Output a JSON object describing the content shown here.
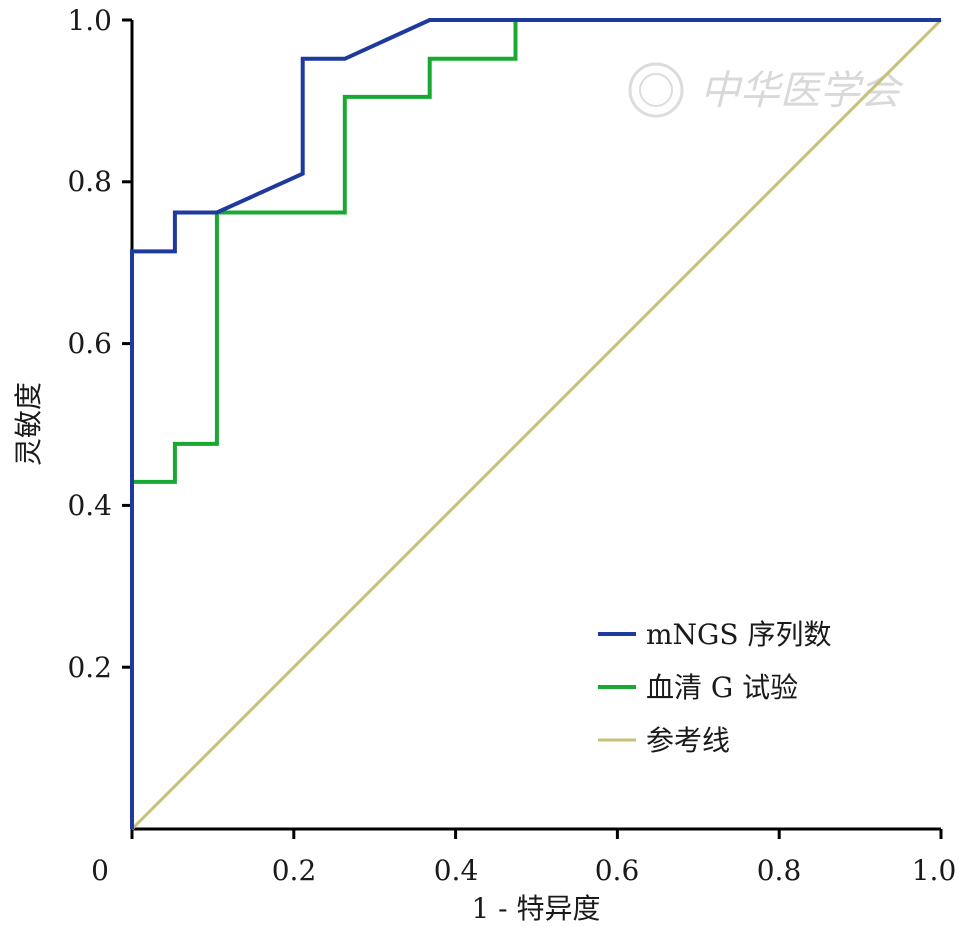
{
  "chart_data": {
    "type": "line",
    "xlabel": "1 - 特异度",
    "ylabel": "灵敏度",
    "xlim": [
      0,
      1
    ],
    "ylim": [
      0,
      1
    ],
    "x_ticks": [
      "0",
      "0.2",
      "0.4",
      "0.6",
      "0.8",
      "1.0"
    ],
    "y_ticks": [
      "0.2",
      "0.4",
      "0.6",
      "0.8",
      "1.0"
    ],
    "grid": false,
    "legend_position": "bottom-right",
    "watermark": "中华医学会",
    "series": [
      {
        "name": "mNGS 序列数",
        "color": "#1f3a9e",
        "points": [
          [
            0,
            0
          ],
          [
            0,
            0.714
          ],
          [
            0.053,
            0.714
          ],
          [
            0.053,
            0.762
          ],
          [
            0.105,
            0.762
          ],
          [
            0.211,
            0.81
          ],
          [
            0.211,
            0.952
          ],
          [
            0.263,
            0.952
          ],
          [
            0.368,
            1.0
          ],
          [
            1.0,
            1.0
          ]
        ]
      },
      {
        "name": "血清 G 试验",
        "color": "#19a832",
        "points": [
          [
            0,
            0
          ],
          [
            0,
            0.429
          ],
          [
            0.053,
            0.429
          ],
          [
            0.053,
            0.476
          ],
          [
            0.105,
            0.476
          ],
          [
            0.105,
            0.762
          ],
          [
            0.263,
            0.762
          ],
          [
            0.263,
            0.905
          ],
          [
            0.368,
            0.905
          ],
          [
            0.368,
            0.952
          ],
          [
            0.474,
            0.952
          ],
          [
            0.474,
            1.0
          ],
          [
            1.0,
            1.0
          ]
        ]
      },
      {
        "name": "参考线",
        "color": "#c8c07a",
        "points": [
          [
            0,
            0
          ],
          [
            1,
            1
          ]
        ]
      }
    ]
  }
}
